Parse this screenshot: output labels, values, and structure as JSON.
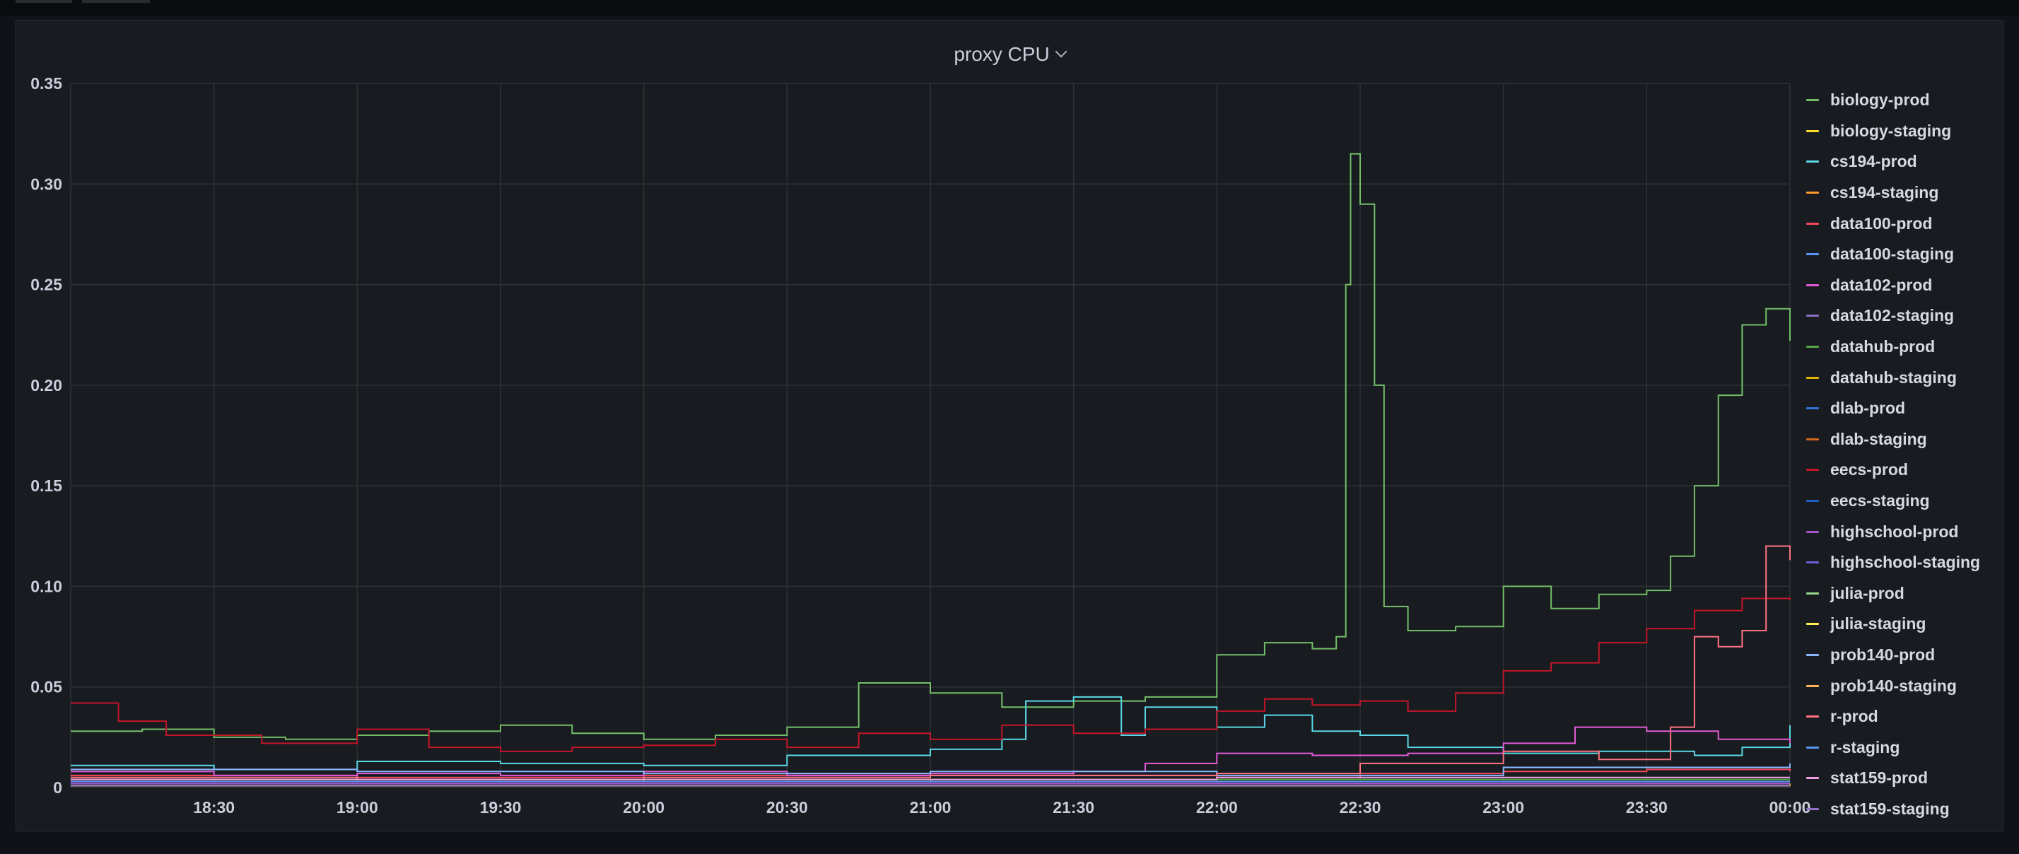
{
  "panel": {
    "title": "proxy CPU",
    "menu_icon": "chevron-down-icon"
  },
  "colors": {
    "background": "#111217",
    "panel": "#181b1f",
    "grid": "#2f3238",
    "text": "#ccccdc"
  },
  "chart_data": {
    "type": "line",
    "title": "proxy CPU",
    "xlabel": "",
    "ylabel": "",
    "grid": true,
    "legend_position": "right",
    "interpolation": "step",
    "x_tick_labels": [
      "18:30",
      "19:00",
      "19:30",
      "20:00",
      "20:30",
      "21:00",
      "21:30",
      "22:00",
      "22:30",
      "23:00",
      "23:30",
      "00:00"
    ],
    "x_range": [
      "18:00",
      "00:00"
    ],
    "y_ticks": [
      0,
      0.05,
      0.1,
      0.15,
      0.2,
      0.25,
      0.3,
      0.35
    ],
    "y_tick_labels": [
      "0",
      "0.05",
      "0.10",
      "0.15",
      "0.20",
      "0.25",
      "0.30",
      "0.35"
    ],
    "ylim": [
      0,
      0.35
    ],
    "series": [
      {
        "name": "biology-prod",
        "color": "#73bf69",
        "points": [
          [
            "18:00",
            0.028
          ],
          [
            "18:15",
            0.029
          ],
          [
            "18:30",
            0.025
          ],
          [
            "18:45",
            0.024
          ],
          [
            "19:00",
            0.026
          ],
          [
            "19:15",
            0.028
          ],
          [
            "19:30",
            0.031
          ],
          [
            "19:45",
            0.027
          ],
          [
            "20:00",
            0.024
          ],
          [
            "20:15",
            0.026
          ],
          [
            "20:30",
            0.03
          ],
          [
            "20:45",
            0.052
          ],
          [
            "21:00",
            0.047
          ],
          [
            "21:15",
            0.04
          ],
          [
            "21:30",
            0.043
          ],
          [
            "21:45",
            0.045
          ],
          [
            "22:00",
            0.066
          ],
          [
            "22:10",
            0.072
          ],
          [
            "22:20",
            0.069
          ],
          [
            "22:25",
            0.075
          ],
          [
            "22:27",
            0.25
          ],
          [
            "22:28",
            0.315
          ],
          [
            "22:30",
            0.29
          ],
          [
            "22:33",
            0.2
          ],
          [
            "22:35",
            0.09
          ],
          [
            "22:40",
            0.078
          ],
          [
            "22:50",
            0.08
          ],
          [
            "23:00",
            0.1
          ],
          [
            "23:10",
            0.089
          ],
          [
            "23:20",
            0.096
          ],
          [
            "23:30",
            0.098
          ],
          [
            "23:35",
            0.115
          ],
          [
            "23:40",
            0.15
          ],
          [
            "23:45",
            0.195
          ],
          [
            "23:50",
            0.23
          ],
          [
            "23:55",
            0.238
          ],
          [
            "00:00",
            0.222
          ]
        ]
      },
      {
        "name": "biology-staging",
        "color": "#fade2a",
        "points": [
          [
            "18:00",
            0.001
          ],
          [
            "19:00",
            0.001
          ],
          [
            "20:00",
            0.001
          ],
          [
            "21:00",
            0.001
          ],
          [
            "22:00",
            0.001
          ],
          [
            "23:00",
            0.001
          ],
          [
            "00:00",
            0.001
          ]
        ]
      },
      {
        "name": "cs194-prod",
        "color": "#5ad8e6",
        "points": [
          [
            "18:00",
            0.011
          ],
          [
            "18:30",
            0.009
          ],
          [
            "19:00",
            0.013
          ],
          [
            "19:30",
            0.012
          ],
          [
            "20:00",
            0.011
          ],
          [
            "20:30",
            0.016
          ],
          [
            "21:00",
            0.019
          ],
          [
            "21:15",
            0.024
          ],
          [
            "21:20",
            0.043
          ],
          [
            "21:30",
            0.045
          ],
          [
            "21:40",
            0.026
          ],
          [
            "21:45",
            0.04
          ],
          [
            "22:00",
            0.03
          ],
          [
            "22:10",
            0.036
          ],
          [
            "22:20",
            0.028
          ],
          [
            "22:30",
            0.026
          ],
          [
            "22:40",
            0.02
          ],
          [
            "23:00",
            0.017
          ],
          [
            "23:20",
            0.018
          ],
          [
            "23:40",
            0.016
          ],
          [
            "23:50",
            0.02
          ],
          [
            "00:00",
            0.031
          ]
        ]
      },
      {
        "name": "cs194-staging",
        "color": "#ff9830",
        "points": [
          [
            "18:00",
            0.002
          ],
          [
            "19:00",
            0.002
          ],
          [
            "20:00",
            0.002
          ],
          [
            "21:00",
            0.002
          ],
          [
            "22:00",
            0.002
          ],
          [
            "23:00",
            0.002
          ],
          [
            "00:00",
            0.002
          ]
        ]
      },
      {
        "name": "data100-prod",
        "color": "#f2495c",
        "points": [
          [
            "18:00",
            0.006
          ],
          [
            "19:00",
            0.005
          ],
          [
            "20:00",
            0.006
          ],
          [
            "21:00",
            0.006
          ],
          [
            "22:00",
            0.005
          ],
          [
            "22:30",
            0.007
          ],
          [
            "23:00",
            0.008
          ],
          [
            "23:30",
            0.009
          ],
          [
            "00:00",
            0.008
          ]
        ]
      },
      {
        "name": "data100-staging",
        "color": "#5794f2",
        "points": [
          [
            "18:00",
            0.001
          ],
          [
            "20:00",
            0.001
          ],
          [
            "22:00",
            0.001
          ],
          [
            "00:00",
            0.001
          ]
        ]
      },
      {
        "name": "data102-prod",
        "color": "#e35bd8",
        "points": [
          [
            "18:00",
            0.008
          ],
          [
            "18:30",
            0.006
          ],
          [
            "19:00",
            0.007
          ],
          [
            "19:30",
            0.006
          ],
          [
            "20:00",
            0.008
          ],
          [
            "20:30",
            0.006
          ],
          [
            "21:00",
            0.007
          ],
          [
            "21:30",
            0.008
          ],
          [
            "21:45",
            0.012
          ],
          [
            "22:00",
            0.017
          ],
          [
            "22:20",
            0.016
          ],
          [
            "22:40",
            0.017
          ],
          [
            "23:00",
            0.022
          ],
          [
            "23:15",
            0.03
          ],
          [
            "23:30",
            0.028
          ],
          [
            "23:45",
            0.024
          ],
          [
            "00:00",
            0.022
          ]
        ]
      },
      {
        "name": "data102-staging",
        "color": "#8f70c8",
        "points": [
          [
            "18:00",
            0.001
          ],
          [
            "20:00",
            0.001
          ],
          [
            "22:00",
            0.001
          ],
          [
            "00:00",
            0.001
          ]
        ]
      },
      {
        "name": "datahub-prod",
        "color": "#56a64b",
        "points": [
          [
            "18:00",
            0.004
          ],
          [
            "19:00",
            0.004
          ],
          [
            "20:00",
            0.003
          ],
          [
            "21:00",
            0.004
          ],
          [
            "22:00",
            0.004
          ],
          [
            "23:00",
            0.004
          ],
          [
            "00:00",
            0.004
          ]
        ]
      },
      {
        "name": "datahub-staging",
        "color": "#e0b400",
        "points": [
          [
            "18:00",
            0.001
          ],
          [
            "20:00",
            0.001
          ],
          [
            "22:00",
            0.001
          ],
          [
            "00:00",
            0.002
          ]
        ]
      },
      {
        "name": "dlab-prod",
        "color": "#3274d9",
        "points": [
          [
            "18:00",
            0.002
          ],
          [
            "20:00",
            0.002
          ],
          [
            "22:00",
            0.002
          ],
          [
            "00:00",
            0.002
          ]
        ]
      },
      {
        "name": "dlab-staging",
        "color": "#d4661e",
        "points": [
          [
            "18:00",
            0.001
          ],
          [
            "20:00",
            0.001
          ],
          [
            "22:00",
            0.001
          ],
          [
            "00:00",
            0.001
          ]
        ]
      },
      {
        "name": "eecs-prod",
        "color": "#c4162a",
        "points": [
          [
            "18:00",
            0.042
          ],
          [
            "18:10",
            0.033
          ],
          [
            "18:20",
            0.026
          ],
          [
            "18:40",
            0.022
          ],
          [
            "19:00",
            0.029
          ],
          [
            "19:15",
            0.02
          ],
          [
            "19:30",
            0.018
          ],
          [
            "19:45",
            0.02
          ],
          [
            "20:00",
            0.021
          ],
          [
            "20:15",
            0.024
          ],
          [
            "20:30",
            0.02
          ],
          [
            "20:45",
            0.027
          ],
          [
            "21:00",
            0.024
          ],
          [
            "21:15",
            0.031
          ],
          [
            "21:30",
            0.027
          ],
          [
            "21:45",
            0.029
          ],
          [
            "22:00",
            0.038
          ],
          [
            "22:10",
            0.044
          ],
          [
            "22:20",
            0.041
          ],
          [
            "22:30",
            0.043
          ],
          [
            "22:40",
            0.038
          ],
          [
            "22:50",
            0.047
          ],
          [
            "23:00",
            0.058
          ],
          [
            "23:10",
            0.062
          ],
          [
            "23:20",
            0.072
          ],
          [
            "23:30",
            0.079
          ],
          [
            "23:40",
            0.088
          ],
          [
            "23:50",
            0.094
          ],
          [
            "00:00",
            0.093
          ]
        ]
      },
      {
        "name": "eecs-staging",
        "color": "#1f60c4",
        "points": [
          [
            "18:00",
            0.001
          ],
          [
            "20:00",
            0.001
          ],
          [
            "22:00",
            0.001
          ],
          [
            "00:00",
            0.001
          ]
        ]
      },
      {
        "name": "highschool-prod",
        "color": "#a352cc",
        "points": [
          [
            "18:00",
            0.002
          ],
          [
            "20:00",
            0.002
          ],
          [
            "22:00",
            0.002
          ],
          [
            "00:00",
            0.002
          ]
        ]
      },
      {
        "name": "highschool-staging",
        "color": "#6d5ed8",
        "points": [
          [
            "18:00",
            0.001
          ],
          [
            "20:00",
            0.001
          ],
          [
            "22:00",
            0.001
          ],
          [
            "00:00",
            0.001
          ]
        ]
      },
      {
        "name": "julia-prod",
        "color": "#96d98d",
        "points": [
          [
            "18:00",
            0.003
          ],
          [
            "20:00",
            0.003
          ],
          [
            "22:00",
            0.003
          ],
          [
            "00:00",
            0.003
          ]
        ]
      },
      {
        "name": "julia-staging",
        "color": "#ffee52",
        "points": [
          [
            "18:00",
            0.001
          ],
          [
            "20:00",
            0.001
          ],
          [
            "22:00",
            0.001
          ],
          [
            "00:00",
            0.001
          ]
        ]
      },
      {
        "name": "prob140-prod",
        "color": "#8ab8ff",
        "points": [
          [
            "18:00",
            0.009
          ],
          [
            "19:00",
            0.008
          ],
          [
            "20:00",
            0.007
          ],
          [
            "21:00",
            0.008
          ],
          [
            "22:00",
            0.006
          ],
          [
            "23:00",
            0.01
          ],
          [
            "00:00",
            0.012
          ]
        ]
      },
      {
        "name": "prob140-staging",
        "color": "#ffb357",
        "points": [
          [
            "18:00",
            0.001
          ],
          [
            "20:00",
            0.001
          ],
          [
            "22:00",
            0.001
          ],
          [
            "00:00",
            0.001
          ]
        ]
      },
      {
        "name": "r-prod",
        "color": "#ff7383",
        "points": [
          [
            "18:00",
            0.005
          ],
          [
            "19:00",
            0.004
          ],
          [
            "20:00",
            0.005
          ],
          [
            "21:00",
            0.006
          ],
          [
            "22:00",
            0.007
          ],
          [
            "22:30",
            0.012
          ],
          [
            "23:00",
            0.018
          ],
          [
            "23:20",
            0.014
          ],
          [
            "23:35",
            0.03
          ],
          [
            "23:40",
            0.075
          ],
          [
            "23:45",
            0.07
          ],
          [
            "23:50",
            0.078
          ],
          [
            "23:55",
            0.12
          ],
          [
            "00:00",
            0.113
          ]
        ]
      },
      {
        "name": "r-staging",
        "color": "#5794f2",
        "points": [
          [
            "18:00",
            0.003
          ],
          [
            "20:00",
            0.003
          ],
          [
            "22:00",
            0.003
          ],
          [
            "00:00",
            0.003
          ]
        ]
      },
      {
        "name": "stat159-prod",
        "color": "#f0a0e0",
        "points": [
          [
            "18:00",
            0.004
          ],
          [
            "20:00",
            0.004
          ],
          [
            "22:00",
            0.005
          ],
          [
            "00:00",
            0.005
          ]
        ]
      },
      {
        "name": "stat159-staging",
        "color": "#8f70c8",
        "points": [
          [
            "18:00",
            0.001
          ],
          [
            "20:00",
            0.001
          ],
          [
            "22:00",
            0.001
          ],
          [
            "00:00",
            0.001
          ]
        ]
      }
    ]
  }
}
